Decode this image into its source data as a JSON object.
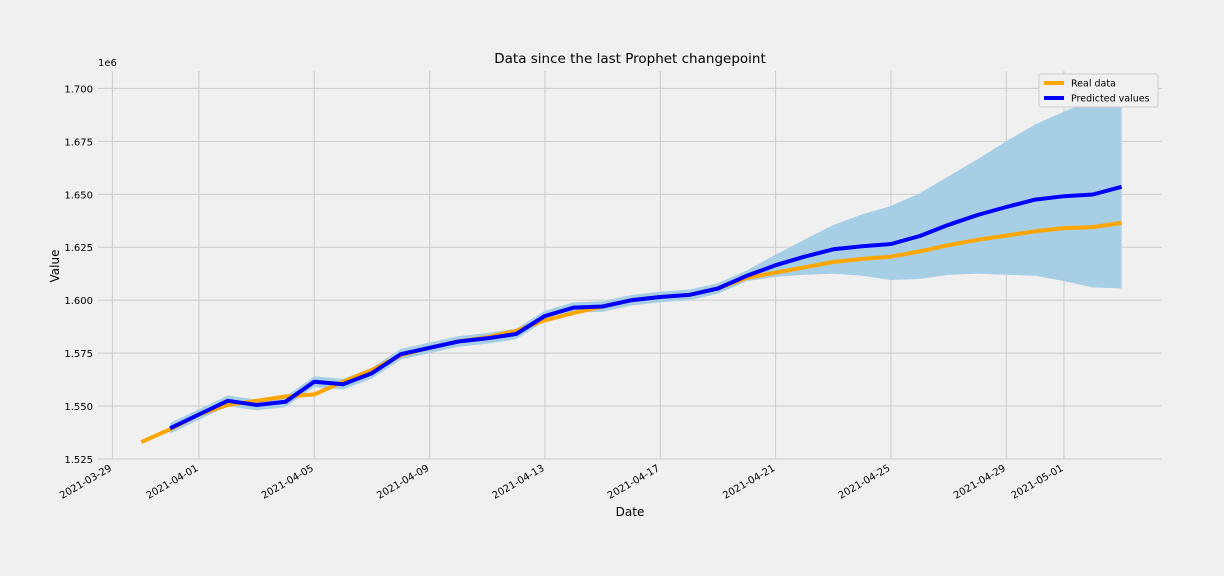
{
  "chart_data": {
    "type": "line",
    "title": "Data since the last Prophet changepoint",
    "xlabel": "Date",
    "ylabel": "Value",
    "y_scale_label": "1e6",
    "xlim": [
      "2021-03-29",
      "2021-05-03"
    ],
    "ylim": [
      1.525,
      1.708
    ],
    "x_tick_labels": [
      "2021-03-29",
      "2021-04-01",
      "2021-04-05",
      "2021-04-09",
      "2021-04-13",
      "2021-04-17",
      "2021-04-21",
      "2021-04-25",
      "2021-04-29",
      "2021-05-01"
    ],
    "y_tick_labels": [
      "1.525",
      "1.550",
      "1.575",
      "1.600",
      "1.625",
      "1.650",
      "1.675",
      "1.700"
    ],
    "y_ticks": [
      1.525,
      1.55,
      1.575,
      1.6,
      1.625,
      1.65,
      1.675,
      1.7
    ],
    "grid": true,
    "legend_position": "top-right",
    "series": [
      {
        "name": "Real data",
        "color": "#ffa500",
        "x": [
          "2021-03-30",
          "2021-03-31",
          "2021-04-01",
          "2021-04-02",
          "2021-04-03",
          "2021-04-04",
          "2021-04-05",
          "2021-04-06",
          "2021-04-07",
          "2021-04-08",
          "2021-04-09",
          "2021-04-10",
          "2021-04-11",
          "2021-04-12",
          "2021-04-13",
          "2021-04-14",
          "2021-04-15",
          "2021-04-16",
          "2021-04-17",
          "2021-04-18",
          "2021-04-19",
          "2021-04-20",
          "2021-04-21",
          "2021-04-22",
          "2021-04-23",
          "2021-04-24",
          "2021-04-25",
          "2021-04-26",
          "2021-04-27",
          "2021-04-28",
          "2021-04-29",
          "2021-04-30",
          "2021-05-01",
          "2021-05-02",
          "2021-05-03"
        ],
        "values": [
          1.533,
          1.539,
          1.546,
          1.5505,
          1.5525,
          1.5545,
          1.5555,
          1.5615,
          1.567,
          1.574,
          1.5775,
          1.5805,
          1.5825,
          1.5855,
          1.5905,
          1.594,
          1.597,
          1.6,
          1.6015,
          1.6025,
          1.6055,
          1.6105,
          1.613,
          1.6155,
          1.618,
          1.6195,
          1.6205,
          1.623,
          1.626,
          1.6285,
          1.6305,
          1.6325,
          1.634,
          1.6345,
          1.6365
        ]
      },
      {
        "name": "Predicted values",
        "color": "#0000ff",
        "x": [
          "2021-03-31",
          "2021-04-01",
          "2021-04-02",
          "2021-04-03",
          "2021-04-04",
          "2021-04-05",
          "2021-04-06",
          "2021-04-07",
          "2021-04-08",
          "2021-04-09",
          "2021-04-10",
          "2021-04-11",
          "2021-04-12",
          "2021-04-13",
          "2021-04-14",
          "2021-04-15",
          "2021-04-16",
          "2021-04-17",
          "2021-04-18",
          "2021-04-19",
          "2021-04-20",
          "2021-04-21",
          "2021-04-22",
          "2021-04-23",
          "2021-04-24",
          "2021-04-25",
          "2021-04-26",
          "2021-04-27",
          "2021-04-28",
          "2021-04-29",
          "2021-04-30",
          "2021-05-01",
          "2021-05-02",
          "2021-05-03"
        ],
        "values": [
          1.5395,
          1.546,
          1.5525,
          1.5505,
          1.552,
          1.5615,
          1.5603,
          1.5655,
          1.5745,
          1.5775,
          1.5805,
          1.582,
          1.584,
          1.5925,
          1.5965,
          1.597,
          1.6,
          1.6015,
          1.6025,
          1.6055,
          1.6115,
          1.6165,
          1.6205,
          1.624,
          1.6255,
          1.6265,
          1.6303,
          1.6356,
          1.6402,
          1.644,
          1.6475,
          1.6491,
          1.6499,
          1.6535
        ]
      }
    ],
    "uncertainty_band": {
      "color": "#a6cfe6",
      "x": [
        "2021-03-31",
        "2021-04-01",
        "2021-04-02",
        "2021-04-03",
        "2021-04-04",
        "2021-04-05",
        "2021-04-06",
        "2021-04-07",
        "2021-04-08",
        "2021-04-09",
        "2021-04-10",
        "2021-04-11",
        "2021-04-12",
        "2021-04-13",
        "2021-04-14",
        "2021-04-15",
        "2021-04-16",
        "2021-04-17",
        "2021-04-18",
        "2021-04-19",
        "2021-04-20",
        "2021-04-21",
        "2021-04-22",
        "2021-04-23",
        "2021-04-24",
        "2021-04-25",
        "2021-04-26",
        "2021-04-27",
        "2021-04-28",
        "2021-04-29",
        "2021-04-30",
        "2021-05-01",
        "2021-05-02",
        "2021-05-03"
      ],
      "lower": [
        1.537,
        1.5435,
        1.55,
        1.548,
        1.5495,
        1.559,
        1.5578,
        1.563,
        1.572,
        1.575,
        1.578,
        1.5795,
        1.5815,
        1.59,
        1.594,
        1.5945,
        1.5975,
        1.599,
        1.6,
        1.603,
        1.609,
        1.611,
        1.612,
        1.6125,
        1.6115,
        1.6095,
        1.61,
        1.612,
        1.6125,
        1.612,
        1.6115,
        1.609,
        1.606,
        1.6055
      ],
      "upper": [
        1.542,
        1.5485,
        1.555,
        1.553,
        1.5545,
        1.564,
        1.5628,
        1.568,
        1.577,
        1.58,
        1.583,
        1.5845,
        1.5865,
        1.595,
        1.599,
        1.5995,
        1.6025,
        1.604,
        1.605,
        1.608,
        1.614,
        1.6215,
        1.6285,
        1.6355,
        1.6405,
        1.6445,
        1.6505,
        1.6585,
        1.6665,
        1.675,
        1.683,
        1.689,
        1.695,
        1.699
      ]
    }
  }
}
